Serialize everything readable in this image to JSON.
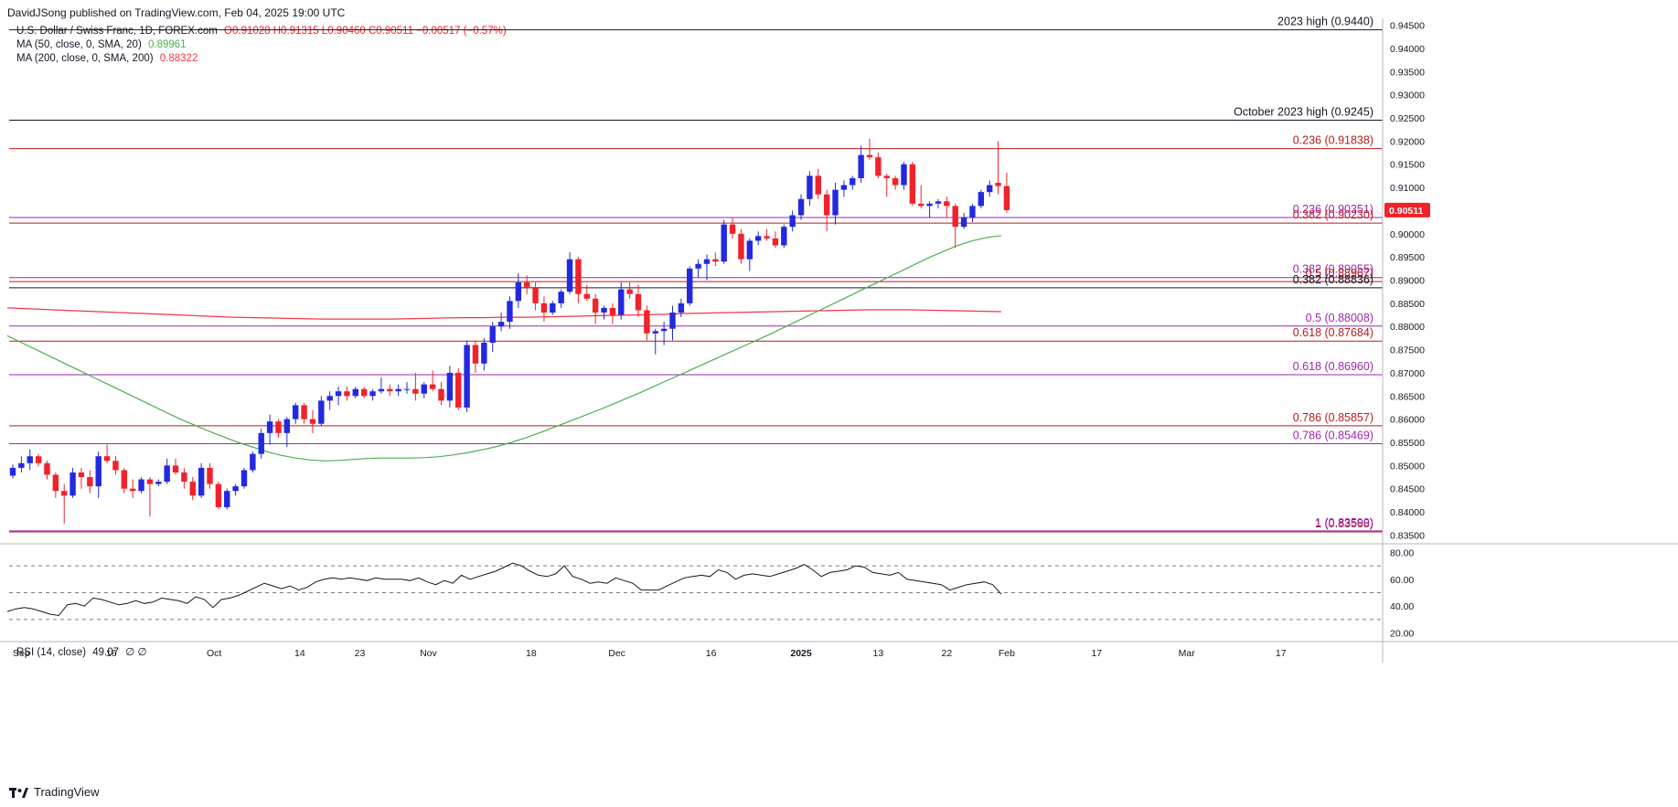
{
  "header": {
    "publisher": "DavidJSong published on TradingView.com, Feb 04, 2025 19:00 UTC",
    "symbol": "U.S. Dollar / Swiss Franc, 1D, FOREX.com",
    "ohlc": "O0.91028 H0.91315 L0.90460 C0.90511 −0.00517 (−0.57%)",
    "ma50": {
      "label": "MA (50, close, 0, SMA, 20)",
      "value": "0.89961"
    },
    "ma200": {
      "label": "MA (200, close, 0, SMA, 200)",
      "value": "0.88322"
    },
    "rsi": {
      "label": "RSI (14, close)",
      "value": "49.07",
      "extra": "∅ ∅"
    }
  },
  "brand": "TradingView",
  "colors": {
    "up": "#2229e0",
    "down": "#f0222a",
    "ma50": "#4caf50",
    "ma200": "#f23645",
    "level_dark": "#131722",
    "level_red": "#b71c1c",
    "level_purple": "#9c27b0",
    "price_tag": "#f0222a",
    "rsi": "#131722"
  },
  "chart_data": {
    "type": "candlestick",
    "ylim": [
      0.8335,
      0.9465
    ],
    "y_ticks": [
      "0.94500",
      "0.94000",
      "0.93500",
      "0.93000",
      "0.92500",
      "0.92000",
      "0.91500",
      "0.91000",
      "0.90500",
      "0.90000",
      "0.89500",
      "0.89000",
      "0.88500",
      "0.88000",
      "0.87500",
      "0.87000",
      "0.86500",
      "0.86000",
      "0.85500",
      "0.85000",
      "0.84500",
      "0.84000",
      "0.83500"
    ],
    "x_labels": [
      "Sep",
      "16",
      "Oct",
      "14",
      "23",
      "Nov",
      "18",
      "Dec",
      "16",
      "2025",
      "13",
      "22",
      "Feb",
      "17",
      "Mar",
      "17"
    ],
    "current_price": "0.90511",
    "levels": [
      {
        "label": "2023 high (0.9440)",
        "value": 0.944,
        "style": "dark"
      },
      {
        "label": "October 2023 high (0.9245)",
        "value": 0.9245,
        "style": "dark"
      },
      {
        "label": "0.236 (0.91838)",
        "value": 0.91838,
        "style": "red"
      },
      {
        "label": "0.236 (0.90351)",
        "value": 0.90351,
        "style": "purple"
      },
      {
        "label": "0.382 (0.90230)",
        "value": 0.9023,
        "style": "red"
      },
      {
        "label": "0.382 (0.89055)",
        "value": 0.89055,
        "style": "purple"
      },
      {
        "label": "0.5 (0.88967)",
        "value": 0.88967,
        "style": "red"
      },
      {
        "label": "0.382 (0.88836)",
        "value": 0.88836,
        "style": "dark"
      },
      {
        "label": "0.5 (0.88008)",
        "value": 0.88008,
        "style": "purple"
      },
      {
        "label": "0.618 (0.87684)",
        "value": 0.87684,
        "style": "red"
      },
      {
        "label": "0.618 (0.86960)",
        "value": 0.8696,
        "style": "purple"
      },
      {
        "label": "0.786 (0.85857)",
        "value": 0.85857,
        "style": "red"
      },
      {
        "label": "0.786 (0.85469)",
        "value": 0.85469,
        "style": "purple"
      },
      {
        "label": "1 (0.83568)",
        "value": 0.83568,
        "style": "red"
      },
      {
        "label": "1 (0.83590)",
        "value": 0.8359,
        "style": "purple"
      }
    ],
    "candles": [
      [
        0.8478,
        0.8502,
        0.8472,
        0.8495
      ],
      [
        0.8495,
        0.852,
        0.8485,
        0.8505
      ],
      [
        0.8505,
        0.8535,
        0.849,
        0.852
      ],
      [
        0.852,
        0.8525,
        0.8498,
        0.8505
      ],
      [
        0.8505,
        0.851,
        0.847,
        0.848
      ],
      [
        0.848,
        0.8485,
        0.843,
        0.8445
      ],
      [
        0.8445,
        0.846,
        0.8375,
        0.8435
      ],
      [
        0.8435,
        0.8495,
        0.843,
        0.8485
      ],
      [
        0.8485,
        0.8495,
        0.845,
        0.8475
      ],
      [
        0.8475,
        0.849,
        0.844,
        0.8455
      ],
      [
        0.8455,
        0.853,
        0.843,
        0.852
      ],
      [
        0.852,
        0.8545,
        0.8505,
        0.851
      ],
      [
        0.851,
        0.852,
        0.848,
        0.849
      ],
      [
        0.849,
        0.8495,
        0.844,
        0.845
      ],
      [
        0.845,
        0.847,
        0.843,
        0.8445
      ],
      [
        0.8445,
        0.8475,
        0.844,
        0.847
      ],
      [
        0.847,
        0.8475,
        0.839,
        0.846
      ],
      [
        0.846,
        0.847,
        0.8455,
        0.8465
      ],
      [
        0.8465,
        0.8515,
        0.846,
        0.85
      ],
      [
        0.85,
        0.8515,
        0.848,
        0.8485
      ],
      [
        0.8485,
        0.8495,
        0.845,
        0.8465
      ],
      [
        0.8465,
        0.8475,
        0.8425,
        0.8435
      ],
      [
        0.8435,
        0.8505,
        0.843,
        0.8495
      ],
      [
        0.8495,
        0.8505,
        0.845,
        0.846
      ],
      [
        0.846,
        0.8465,
        0.8405,
        0.841
      ],
      [
        0.841,
        0.845,
        0.8405,
        0.8445
      ],
      [
        0.8445,
        0.846,
        0.8435,
        0.8455
      ],
      [
        0.8455,
        0.8495,
        0.845,
        0.849
      ],
      [
        0.849,
        0.853,
        0.8485,
        0.8525
      ],
      [
        0.8525,
        0.858,
        0.8515,
        0.857
      ],
      [
        0.857,
        0.861,
        0.8545,
        0.8595
      ],
      [
        0.8595,
        0.86,
        0.856,
        0.857
      ],
      [
        0.857,
        0.8605,
        0.854,
        0.86
      ],
      [
        0.86,
        0.8635,
        0.859,
        0.863
      ],
      [
        0.863,
        0.8635,
        0.859,
        0.86
      ],
      [
        0.86,
        0.862,
        0.857,
        0.859
      ],
      [
        0.859,
        0.865,
        0.8585,
        0.864
      ],
      [
        0.864,
        0.866,
        0.862,
        0.865
      ],
      [
        0.865,
        0.867,
        0.863,
        0.866
      ],
      [
        0.866,
        0.867,
        0.864,
        0.865
      ],
      [
        0.865,
        0.867,
        0.8645,
        0.8665
      ],
      [
        0.8665,
        0.867,
        0.8645,
        0.865
      ],
      [
        0.865,
        0.8665,
        0.864,
        0.866
      ],
      [
        0.866,
        0.869,
        0.8655,
        0.8665
      ],
      [
        0.8665,
        0.8675,
        0.865,
        0.866
      ],
      [
        0.866,
        0.8675,
        0.865,
        0.8665
      ],
      [
        0.8665,
        0.868,
        0.8655,
        0.8665
      ],
      [
        0.8665,
        0.87,
        0.864,
        0.8655
      ],
      [
        0.8655,
        0.868,
        0.8645,
        0.8675
      ],
      [
        0.8675,
        0.8705,
        0.866,
        0.8665
      ],
      [
        0.8665,
        0.868,
        0.863,
        0.864
      ],
      [
        0.864,
        0.8715,
        0.8625,
        0.87
      ],
      [
        0.87,
        0.871,
        0.862,
        0.8625
      ],
      [
        0.8625,
        0.877,
        0.8615,
        0.876
      ],
      [
        0.876,
        0.877,
        0.87,
        0.872
      ],
      [
        0.872,
        0.8775,
        0.8705,
        0.8765
      ],
      [
        0.8765,
        0.881,
        0.8745,
        0.88
      ],
      [
        0.88,
        0.883,
        0.879,
        0.881
      ],
      [
        0.881,
        0.8865,
        0.8795,
        0.8855
      ],
      [
        0.8855,
        0.8915,
        0.884,
        0.8895
      ],
      [
        0.8895,
        0.891,
        0.887,
        0.8885
      ],
      [
        0.8885,
        0.8895,
        0.8835,
        0.885
      ],
      [
        0.885,
        0.8865,
        0.881,
        0.883
      ],
      [
        0.883,
        0.8855,
        0.8825,
        0.885
      ],
      [
        0.885,
        0.888,
        0.884,
        0.8875
      ],
      [
        0.8875,
        0.896,
        0.887,
        0.8945
      ],
      [
        0.8945,
        0.895,
        0.885,
        0.887
      ],
      [
        0.887,
        0.889,
        0.8855,
        0.886
      ],
      [
        0.886,
        0.887,
        0.8805,
        0.883
      ],
      [
        0.883,
        0.8845,
        0.8815,
        0.884
      ],
      [
        0.884,
        0.885,
        0.8805,
        0.8825
      ],
      [
        0.8825,
        0.8895,
        0.8815,
        0.888
      ],
      [
        0.888,
        0.8895,
        0.886,
        0.887
      ],
      [
        0.887,
        0.889,
        0.882,
        0.8835
      ],
      [
        0.8835,
        0.8845,
        0.877,
        0.8785
      ],
      [
        0.8785,
        0.8795,
        0.874,
        0.879
      ],
      [
        0.879,
        0.881,
        0.876,
        0.8795
      ],
      [
        0.8795,
        0.8845,
        0.877,
        0.883
      ],
      [
        0.883,
        0.886,
        0.882,
        0.885
      ],
      [
        0.885,
        0.893,
        0.8845,
        0.8925
      ],
      [
        0.8925,
        0.8945,
        0.8905,
        0.8935
      ],
      [
        0.8935,
        0.8955,
        0.89,
        0.8945
      ],
      [
        0.8945,
        0.896,
        0.893,
        0.894
      ],
      [
        0.894,
        0.903,
        0.8935,
        0.902
      ],
      [
        0.902,
        0.9035,
        0.899,
        0.9
      ],
      [
        0.9,
        0.901,
        0.8935,
        0.8945
      ],
      [
        0.8945,
        0.899,
        0.892,
        0.8985
      ],
      [
        0.8985,
        0.9005,
        0.8975,
        0.8995
      ],
      [
        0.8995,
        0.901,
        0.8985,
        0.899
      ],
      [
        0.899,
        0.9005,
        0.897,
        0.8975
      ],
      [
        0.8975,
        0.902,
        0.897,
        0.9015
      ],
      [
        0.9015,
        0.905,
        0.9005,
        0.904
      ],
      [
        0.904,
        0.9085,
        0.903,
        0.9075
      ],
      [
        0.9075,
        0.9135,
        0.906,
        0.9125
      ],
      [
        0.9125,
        0.914,
        0.9075,
        0.9085
      ],
      [
        0.9085,
        0.9095,
        0.9005,
        0.904
      ],
      [
        0.904,
        0.911,
        0.902,
        0.9095
      ],
      [
        0.9095,
        0.9115,
        0.908,
        0.9105
      ],
      [
        0.9105,
        0.9125,
        0.9095,
        0.912
      ],
      [
        0.912,
        0.919,
        0.911,
        0.917
      ],
      [
        0.917,
        0.9205,
        0.916,
        0.9165
      ],
      [
        0.9165,
        0.9175,
        0.912,
        0.9125
      ],
      [
        0.9125,
        0.913,
        0.908,
        0.912
      ],
      [
        0.912,
        0.9125,
        0.9095,
        0.9105
      ],
      [
        0.9105,
        0.9155,
        0.9095,
        0.915
      ],
      [
        0.915,
        0.9155,
        0.906,
        0.9065
      ],
      [
        0.9065,
        0.9105,
        0.9055,
        0.906
      ],
      [
        0.906,
        0.907,
        0.9035,
        0.9065
      ],
      [
        0.9065,
        0.9075,
        0.9055,
        0.907
      ],
      [
        0.907,
        0.908,
        0.9035,
        0.906
      ],
      [
        0.906,
        0.9065,
        0.897,
        0.9015
      ],
      [
        0.9015,
        0.9045,
        0.901,
        0.9035
      ],
      [
        0.9035,
        0.9065,
        0.9025,
        0.906
      ],
      [
        0.906,
        0.9095,
        0.9055,
        0.909
      ],
      [
        0.909,
        0.9115,
        0.908,
        0.9105
      ],
      [
        0.911,
        0.92,
        0.9085,
        0.9103
      ],
      [
        0.9103,
        0.9132,
        0.9046,
        0.9051
      ]
    ],
    "ma50": [
      0.878,
      0.8765,
      0.875,
      0.8735,
      0.872,
      0.8705,
      0.869,
      0.8675,
      0.866,
      0.8645,
      0.863,
      0.8615,
      0.86,
      0.8587,
      0.8574,
      0.8562,
      0.855,
      0.854,
      0.853,
      0.8522,
      0.8516,
      0.8512,
      0.851,
      0.8511,
      0.8513,
      0.8515,
      0.8516,
      0.8516,
      0.8516,
      0.8517,
      0.8519,
      0.8523,
      0.8528,
      0.8534,
      0.8541,
      0.855,
      0.856,
      0.8571,
      0.8583,
      0.8595,
      0.8607,
      0.8619,
      0.8632,
      0.8645,
      0.8658,
      0.8672,
      0.8686,
      0.87,
      0.8714,
      0.8728,
      0.8742,
      0.8756,
      0.877,
      0.8784,
      0.8799,
      0.8814,
      0.8829,
      0.8844,
      0.8859,
      0.8874,
      0.8889,
      0.8904,
      0.8919,
      0.8934,
      0.8949,
      0.8962,
      0.8975,
      0.8985,
      0.8992,
      0.8996
    ],
    "ma200": [
      0.884,
      0.8838,
      0.8836,
      0.8834,
      0.8832,
      0.883,
      0.8828,
      0.8826,
      0.8824,
      0.8822,
      0.882,
      0.8819,
      0.8818,
      0.8817,
      0.8816,
      0.8816,
      0.8816,
      0.8816,
      0.8817,
      0.8818,
      0.8819,
      0.8819,
      0.882,
      0.882,
      0.8821,
      0.8822,
      0.8823,
      0.8824,
      0.8825,
      0.8826,
      0.8828,
      0.8829,
      0.883,
      0.8831,
      0.8832,
      0.8833,
      0.8834,
      0.8835,
      0.8836,
      0.8836,
      0.8836,
      0.8835,
      0.8834,
      0.8833,
      0.8832
    ],
    "rsi": {
      "ylim": [
        15,
        85
      ],
      "y_ticks": [
        "80.00",
        "60.00",
        "40.00",
        "20.00"
      ],
      "levels": [
        70,
        50,
        30
      ],
      "values": [
        36,
        38,
        39,
        38,
        36,
        34,
        33,
        41,
        42,
        40,
        46,
        45,
        43,
        41,
        42,
        44,
        42,
        43,
        46,
        45,
        44,
        42,
        47,
        45,
        39,
        45,
        46,
        48,
        51,
        54,
        57,
        55,
        53,
        55,
        52,
        54,
        58,
        60,
        61,
        60,
        61,
        60,
        59,
        61,
        60,
        60,
        60,
        59,
        61,
        58,
        56,
        59,
        57,
        63,
        60,
        62,
        64,
        66,
        69,
        72,
        70,
        66,
        63,
        62,
        64,
        70,
        62,
        60,
        57,
        58,
        57,
        61,
        59,
        57,
        52,
        52,
        52,
        55,
        58,
        61,
        62,
        63,
        62,
        67,
        65,
        60,
        63,
        64,
        63,
        62,
        64,
        66,
        68,
        71,
        67,
        62,
        65,
        66,
        67,
        70,
        69,
        65,
        64,
        63,
        65,
        60,
        59,
        58,
        57,
        56,
        52,
        54,
        56,
        57,
        58,
        56,
        49
      ]
    }
  }
}
